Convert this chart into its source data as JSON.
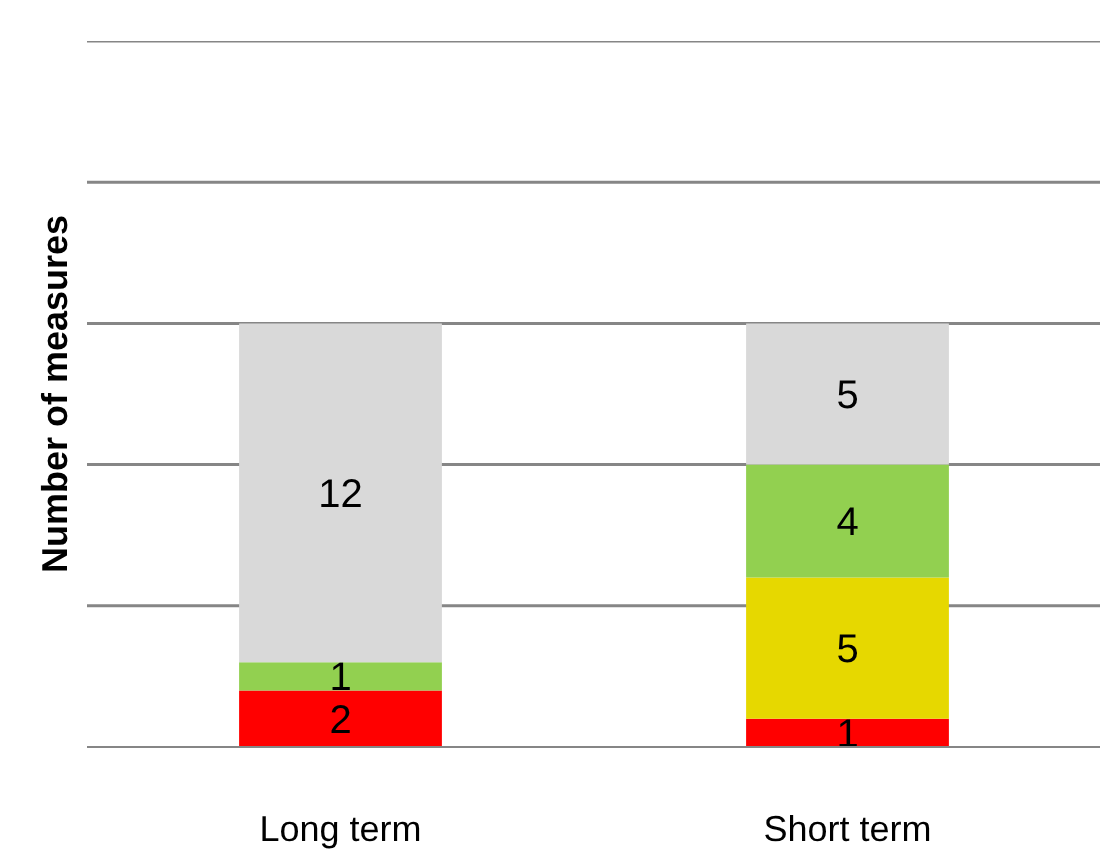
{
  "chart_data": {
    "type": "bar",
    "stacked": true,
    "ylabel": "Number of measures",
    "categories": [
      "Long term",
      "Short term"
    ],
    "series": [
      {
        "color": "#ff0000",
        "values": [
          2,
          1
        ]
      },
      {
        "color": "#e6d800",
        "values": [
          null,
          5
        ]
      },
      {
        "color": "#92d050",
        "values": [
          1,
          4
        ]
      },
      {
        "color": "#d9d9d9",
        "values": [
          12,
          5
        ]
      }
    ],
    "ylim": [
      0,
      25
    ],
    "yticks": [
      {
        "value": 0,
        "label": null
      },
      {
        "value": 5,
        "label": null
      },
      {
        "value": 10,
        "label": null
      },
      {
        "value": 15,
        "label": null
      },
      {
        "value": 20,
        "label": null
      },
      {
        "value": 25,
        "label": null
      }
    ],
    "grid": "y",
    "tick_labels": "x",
    "data_labels": true
  }
}
